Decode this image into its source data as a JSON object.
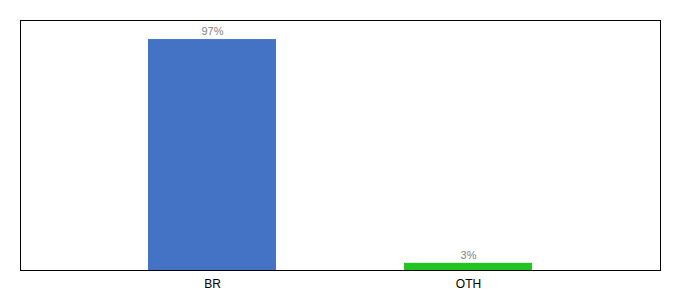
{
  "chart_data": {
    "type": "bar",
    "categories": [
      "BR",
      "OTH"
    ],
    "values": [
      97,
      3
    ],
    "value_labels": [
      "97%",
      "3%"
    ],
    "data_labels": true,
    "colors": [
      "#4472c4",
      "#22c422"
    ],
    "ylim": [
      0,
      105
    ],
    "tick_labels": "x"
  }
}
